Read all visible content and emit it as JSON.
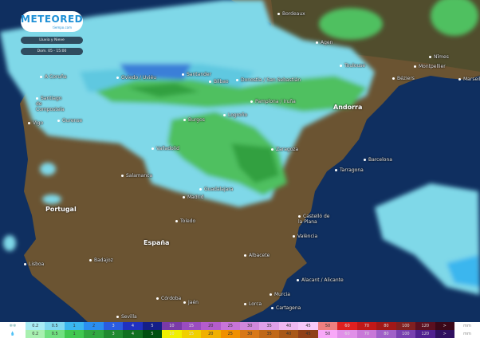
{
  "brand": {
    "name": "METEORED",
    "sub": "tiempo.com"
  },
  "layer": "Lluvia y Nieve",
  "time": "Dom. 05 - 15:00",
  "countries": [
    "Portugal",
    "España",
    "Andorra"
  ],
  "cities": [
    "Bordeaux",
    "Agen",
    "Toulouse",
    "Nîmes",
    "Montpellier",
    "Béziers",
    "Marseille",
    "A Coruña",
    "Santiago de Compostela",
    "Vigo",
    "Ourense",
    "Oviedo / Uviéu",
    "Santander",
    "Bilbao",
    "Donostia / San Sebastián",
    "Pamplona / Iruña",
    "Logroño",
    "Burgos",
    "Valladolid",
    "Zaragoza",
    "Barcelona",
    "Tarragona",
    "Salamanca",
    "Guadalajara",
    "Madrid",
    "Toledo",
    "Castelló de la Plana",
    "València",
    "Badajoz",
    "Lisboa",
    "Albacete",
    "Alacant / Alicante",
    "Murcia",
    "Córdoba",
    "Jaén",
    "Lorca",
    "Cartagena",
    "Sevilla"
  ],
  "legend": {
    "snow_icon": "snowflake-icon",
    "rain_icon": "raindrop-icon",
    "values": [
      "0.2",
      "0.5",
      "1",
      "2",
      "3",
      "4",
      "5",
      "10",
      "15",
      "20",
      "25",
      "30",
      "35",
      "40",
      "45",
      "50",
      "60",
      "70",
      "80",
      "100",
      "120",
      ">"
    ],
    "unit": "mm",
    "snow_colors": [
      "#a8ecf5",
      "#7fd8f0",
      "#3ab6ee",
      "#2a8ef0",
      "#2a5ce0",
      "#2030c0",
      "#141e88",
      "#7a3aa8",
      "#9a4cc0",
      "#b45ccc",
      "#c874d8",
      "#d088dc",
      "#e0a0e8",
      "#f0b8f0",
      "#f8c8f8",
      "#f08080",
      "#e02020",
      "#c01818",
      "#a01818",
      "#802020",
      "#5a1020",
      "#3a0818"
    ],
    "rain_colors": [
      "#a8f0b0",
      "#70e080",
      "#40c850",
      "#30a840",
      "#208a30",
      "#107020",
      "#005010",
      "#f0f000",
      "#f0d000",
      "#f0b000",
      "#f09000",
      "#d87818",
      "#c06818",
      "#a85818",
      "#904018",
      "#f8a8f8",
      "#e090e8",
      "#c878d8",
      "#a060c8",
      "#7840b0",
      "#502090",
      "#301060"
    ]
  }
}
